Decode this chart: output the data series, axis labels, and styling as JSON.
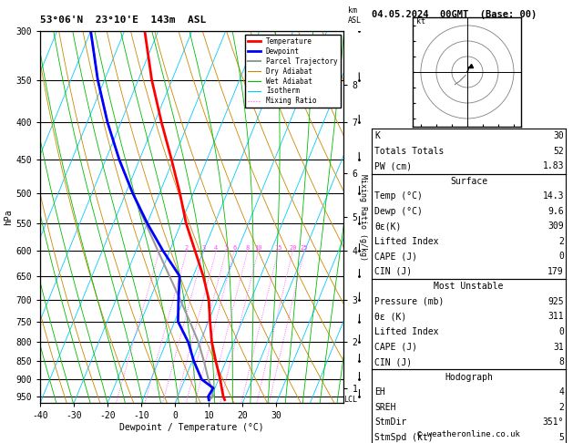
{
  "title_left": "53°06'N  23°10'E  143m  ASL",
  "title_right": "04.05.2024  00GMT  (Base: 00)",
  "xlabel": "Dewpoint / Temperature (°C)",
  "ylabel_left": "hPa",
  "pressure_ticks": [
    300,
    350,
    400,
    450,
    500,
    550,
    600,
    650,
    700,
    750,
    800,
    850,
    900,
    950
  ],
  "temp_ticks": [
    -40,
    -30,
    -20,
    -10,
    0,
    10,
    20,
    30
  ],
  "km_ticks": [
    1,
    2,
    3,
    4,
    5,
    6,
    7,
    8
  ],
  "km_pressures": [
    925,
    800,
    700,
    600,
    540,
    470,
    400,
    355
  ],
  "lcl_pressure": 960,
  "pmin": 300,
  "pmax": 970,
  "xmin": -40,
  "xmax": 40,
  "skew": 45,
  "temperature_profile": {
    "pressure": [
      960,
      950,
      925,
      900,
      850,
      800,
      750,
      700,
      650,
      600,
      550,
      500,
      450,
      400,
      350,
      300
    ],
    "temp": [
      14.3,
      13.5,
      12.0,
      10.5,
      7.0,
      3.5,
      0.5,
      -2.5,
      -7.0,
      -12.5,
      -18.5,
      -24.0,
      -30.5,
      -38.0,
      -46.0,
      -54.0
    ]
  },
  "dewpoint_profile": {
    "pressure": [
      960,
      950,
      925,
      900,
      850,
      800,
      750,
      700,
      650,
      600,
      550,
      500,
      450,
      400,
      350,
      300
    ],
    "temp": [
      9.6,
      9.0,
      9.5,
      5.0,
      0.5,
      -3.5,
      -9.0,
      -11.5,
      -14.0,
      -22.0,
      -30.0,
      -38.0,
      -46.0,
      -54.0,
      -62.0,
      -70.0
    ]
  },
  "parcel_profile": {
    "pressure": [
      960,
      950,
      925,
      900,
      850,
      800,
      750,
      700,
      650,
      600,
      550,
      500,
      450,
      400,
      350,
      300
    ],
    "temp": [
      9.6,
      10.5,
      9.0,
      7.0,
      3.5,
      -0.5,
      -5.5,
      -11.0,
      -17.0,
      -23.5,
      -30.5,
      -38.0,
      -46.0,
      -54.0,
      -62.0,
      -70.0
    ]
  },
  "mixing_ratio_lines": [
    1,
    2,
    3,
    4,
    5,
    6,
    8,
    10,
    15,
    20,
    25
  ],
  "isotherm_color": "#00CCFF",
  "dry_adiabat_color": "#CC8800",
  "wet_adiabat_color": "#00BB00",
  "mixing_ratio_color": "#FF44FF",
  "temperature_color": "#FF0000",
  "dewpoint_color": "#0000FF",
  "parcel_color": "#999999",
  "stats": {
    "K": "30",
    "Totals_Totals": "52",
    "PW_cm": "1.83",
    "Surface_Temp": "14.3",
    "Surface_Dewp": "9.6",
    "Surface_ThetaE": "309",
    "Surface_LiftedIndex": "2",
    "Surface_CAPE": "0",
    "Surface_CIN": "179",
    "MU_Pressure": "925",
    "MU_ThetaE": "311",
    "MU_LiftedIndex": "0",
    "MU_CAPE": "31",
    "MU_CIN": "8",
    "EH": "4",
    "SREH": "2",
    "StmDir": "351°",
    "StmSpd": "5"
  },
  "copyright": "© weatheronline.co.uk"
}
